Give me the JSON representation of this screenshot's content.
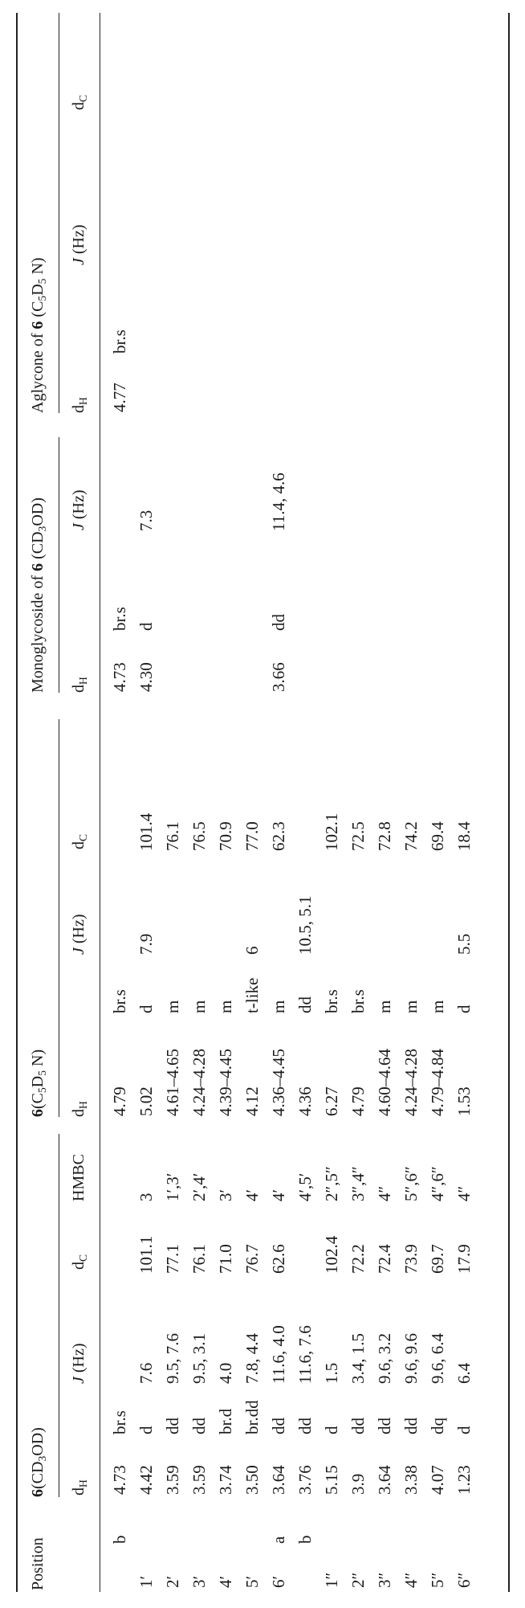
{
  "table": {
    "header": {
      "position": "Position",
      "groups": [
        {
          "compound": "6",
          "solvent_open": "(CD",
          "sub1": "3",
          "solvent_mid": "OD",
          "sub2": "",
          "solvent_end": ")"
        },
        {
          "compound": "6",
          "solvent_open": "(C",
          "sub1": "5",
          "solvent_mid": "D",
          "sub2": "5",
          "solvent_end": " N)"
        },
        {
          "prefix": "Monoglycoside of ",
          "compound": "6",
          "solvent_open": " (CD",
          "sub1": "3",
          "solvent_mid": "OD",
          "sub2": "",
          "solvent_end": ")"
        },
        {
          "prefix": "Aglycone of ",
          "compound": "6",
          "solvent_open": " (C",
          "sub1": "5",
          "solvent_mid": "D",
          "sub2": "5",
          "solvent_end": " N)"
        }
      ],
      "columns": {
        "dh": "d",
        "dh_sub": "H",
        "j": "J",
        "j_unit": " (Hz)",
        "dc": "d",
        "dc_sub": "C",
        "hmbc": "HMBC"
      }
    },
    "rows": [
      {
        "pos": "",
        "sub": "b",
        "c1": {
          "dh": "4.73",
          "m": "br.s",
          "j": "",
          "dc": "",
          "hmbc": ""
        },
        "c2": {
          "dh": "4.79",
          "m": "br.s",
          "j": "",
          "dc": ""
        },
        "c3": {
          "dh": "4.73",
          "m": "br.s",
          "j": ""
        },
        "c4": {
          "dh": "4.77",
          "m": "br.s",
          "j": "",
          "dc": ""
        }
      },
      {
        "pos": "1′",
        "sub": "",
        "c1": {
          "dh": "4.42",
          "m": "d",
          "j": "7.6",
          "dc": "101.1",
          "hmbc": "3"
        },
        "c2": {
          "dh": "5.02",
          "m": "d",
          "j": "7.9",
          "dc": "101.4"
        },
        "c3": {
          "dh": "4.30",
          "m": "d",
          "j": "7.3"
        },
        "c4": {
          "dh": "",
          "m": "",
          "j": "",
          "dc": ""
        }
      },
      {
        "pos": "2′",
        "sub": "",
        "c1": {
          "dh": "3.59",
          "m": "dd",
          "j": "9.5, 7.6",
          "dc": "77.1",
          "hmbc": "1′,3′"
        },
        "c2": {
          "dh": "4.61–4.65",
          "m": "m",
          "j": "",
          "dc": "76.1"
        },
        "c3": {
          "dh": "",
          "m": "",
          "j": ""
        },
        "c4": {
          "dh": "",
          "m": "",
          "j": "",
          "dc": ""
        }
      },
      {
        "pos": "3′",
        "sub": "",
        "c1": {
          "dh": "3.59",
          "m": "dd",
          "j": "9.5, 3.1",
          "dc": "76.1",
          "hmbc": "2′,4′"
        },
        "c2": {
          "dh": "4.24–4.28",
          "m": "m",
          "j": "",
          "dc": "76.5"
        },
        "c3": {
          "dh": "",
          "m": "",
          "j": ""
        },
        "c4": {
          "dh": "",
          "m": "",
          "j": "",
          "dc": ""
        }
      },
      {
        "pos": "4′",
        "sub": "",
        "c1": {
          "dh": "3.74",
          "m": "br.d",
          "j": "4.0",
          "dc": "71.0",
          "hmbc": "3′"
        },
        "c2": {
          "dh": "4.39–4.45",
          "m": "m",
          "j": "",
          "dc": "70.9"
        },
        "c3": {
          "dh": "",
          "m": "",
          "j": ""
        },
        "c4": {
          "dh": "",
          "m": "",
          "j": "",
          "dc": ""
        }
      },
      {
        "pos": "5′",
        "sub": "",
        "c1": {
          "dh": "3.50",
          "m": "br.dd",
          "j": "7.8, 4.4",
          "dc": "76.7",
          "hmbc": "4′"
        },
        "c2": {
          "dh": "4.12",
          "m": "t-like",
          "j": "6",
          "dc": "77.0"
        },
        "c3": {
          "dh": "",
          "m": "",
          "j": ""
        },
        "c4": {
          "dh": "",
          "m": "",
          "j": "",
          "dc": ""
        }
      },
      {
        "pos": "6′",
        "sub": "a",
        "c1": {
          "dh": "3.64",
          "m": "dd",
          "j": "11.6, 4.0",
          "dc": "62.6",
          "hmbc": "4′"
        },
        "c2": {
          "dh": "4.36–4.45",
          "m": "m",
          "j": "",
          "dc": "62.3"
        },
        "c3": {
          "dh": "3.66",
          "m": "dd",
          "j": "11.4, 4.6"
        },
        "c4": {
          "dh": "",
          "m": "",
          "j": "",
          "dc": ""
        }
      },
      {
        "pos": "",
        "sub": "b",
        "c1": {
          "dh": "3.76",
          "m": "dd",
          "j": "11.6, 7.6",
          "dc": "",
          "hmbc": "4′,5′"
        },
        "c2": {
          "dh": "4.36",
          "m": "dd",
          "j": "10.5, 5.1",
          "dc": ""
        },
        "c3": {
          "dh": "",
          "m": "",
          "j": ""
        },
        "c4": {
          "dh": "",
          "m": "",
          "j": "",
          "dc": ""
        }
      },
      {
        "pos": "1″",
        "sub": "",
        "c1": {
          "dh": "5.15",
          "m": "d",
          "j": "1.5",
          "dc": "102.4",
          "hmbc": "2″,5″"
        },
        "c2": {
          "dh": "6.27",
          "m": "br.s",
          "j": "",
          "dc": "102.1"
        },
        "c3": {
          "dh": "",
          "m": "",
          "j": ""
        },
        "c4": {
          "dh": "",
          "m": "",
          "j": "",
          "dc": ""
        }
      },
      {
        "pos": "2″",
        "sub": "",
        "c1": {
          "dh": "3.9",
          "m": "dd",
          "j": "3.4, 1.5",
          "dc": "72.2",
          "hmbc": "3″,4″"
        },
        "c2": {
          "dh": "4.79",
          "m": "br.s",
          "j": "",
          "dc": "72.5"
        },
        "c3": {
          "dh": "",
          "m": "",
          "j": ""
        },
        "c4": {
          "dh": "",
          "m": "",
          "j": "",
          "dc": ""
        }
      },
      {
        "pos": "3″",
        "sub": "",
        "c1": {
          "dh": "3.64",
          "m": "dd",
          "j": "9.6, 3.2",
          "dc": "72.4",
          "hmbc": "4″"
        },
        "c2": {
          "dh": "4.60–4.64",
          "m": "m",
          "j": "",
          "dc": "72.8"
        },
        "c3": {
          "dh": "",
          "m": "",
          "j": ""
        },
        "c4": {
          "dh": "",
          "m": "",
          "j": "",
          "dc": ""
        }
      },
      {
        "pos": "4″",
        "sub": "",
        "c1": {
          "dh": "3.38",
          "m": "dd",
          "j": "9.6, 9.6",
          "dc": "73.9",
          "hmbc": "5″,6″"
        },
        "c2": {
          "dh": "4.24–4.28",
          "m": "m",
          "j": "",
          "dc": "74.2"
        },
        "c3": {
          "dh": "",
          "m": "",
          "j": ""
        },
        "c4": {
          "dh": "",
          "m": "",
          "j": "",
          "dc": ""
        }
      },
      {
        "pos": "5″",
        "sub": "",
        "c1": {
          "dh": "4.07",
          "m": "dq",
          "j": "9.6, 6.4",
          "dc": "69.7",
          "hmbc": "4″,6″"
        },
        "c2": {
          "dh": "4.79–4.84",
          "m": "m",
          "j": "",
          "dc": "69.4"
        },
        "c3": {
          "dh": "",
          "m": "",
          "j": ""
        },
        "c4": {
          "dh": "",
          "m": "",
          "j": "",
          "dc": ""
        }
      },
      {
        "pos": "6″",
        "sub": "",
        "c1": {
          "dh": "1.23",
          "m": "d",
          "j": "6.4",
          "dc": "17.9",
          "hmbc": "4″"
        },
        "c2": {
          "dh": "1.53",
          "m": "d",
          "j": "5.5",
          "dc": "18.4"
        },
        "c3": {
          "dh": "",
          "m": "",
          "j": ""
        },
        "c4": {
          "dh": "",
          "m": "",
          "j": "",
          "dc": ""
        }
      }
    ]
  }
}
